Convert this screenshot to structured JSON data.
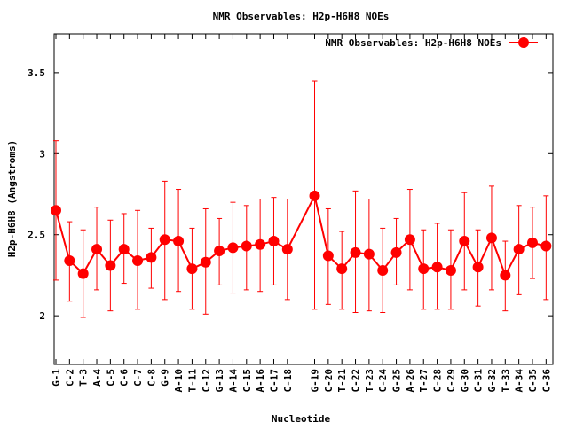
{
  "chart_data": {
    "type": "line",
    "title": "NMR Observables: H2p-H6H8 NOEs",
    "xlabel": "Nucleotide",
    "ylabel": "H2p-H6H8 (Angstroms)",
    "ylim": [
      1.7,
      3.74
    ],
    "xlim": [
      0.87,
      37.5
    ],
    "yticks": [
      2,
      2.5,
      3,
      3.5
    ],
    "ytick_labels": [
      "2",
      "2.5",
      "3",
      "3.5"
    ],
    "grid": false,
    "legend": {
      "label": "NMR Observables: H2p-H6H8 NOEs",
      "placement": "top-right"
    },
    "color": "#ff0000",
    "series": [
      {
        "name": "NMR Observables: H2p-H6H8 NOEs",
        "categories": [
          "G-1",
          "C-2",
          "T-3",
          "A-4",
          "C-5",
          "C-6",
          "C-7",
          "C-8",
          "G-9",
          "A-10",
          "T-11",
          "C-12",
          "G-13",
          "A-14",
          "C-15",
          "A-16",
          "C-17",
          "C-18",
          "G-19",
          "C-20",
          "T-21",
          "C-22",
          "T-23",
          "C-24",
          "G-25",
          "A-26",
          "T-27",
          "C-28",
          "C-29",
          "G-30",
          "C-31",
          "G-32",
          "T-33",
          "A-34",
          "C-35",
          "C-36"
        ],
        "x": [
          1,
          2,
          3,
          4,
          5,
          6,
          7,
          8,
          9,
          10,
          11,
          12,
          13,
          14,
          15,
          16,
          17,
          18,
          20,
          21,
          22,
          23,
          24,
          25,
          26,
          27,
          28,
          29,
          30,
          31,
          32,
          33,
          34,
          35,
          36,
          37
        ],
        "y": [
          2.65,
          2.34,
          2.26,
          2.41,
          2.31,
          2.41,
          2.34,
          2.36,
          2.47,
          2.46,
          2.29,
          2.33,
          2.4,
          2.42,
          2.43,
          2.44,
          2.46,
          2.41,
          2.74,
          2.37,
          2.29,
          2.39,
          2.38,
          2.28,
          2.39,
          2.47,
          2.29,
          2.3,
          2.28,
          2.46,
          2.3,
          2.48,
          2.25,
          2.41,
          2.45,
          2.43
        ],
        "ymin": [
          2.22,
          2.09,
          1.99,
          2.16,
          2.03,
          2.2,
          2.04,
          2.17,
          2.1,
          2.15,
          2.04,
          2.01,
          2.19,
          2.14,
          2.16,
          2.15,
          2.19,
          2.1,
          2.04,
          2.07,
          2.04,
          2.02,
          2.03,
          2.02,
          2.19,
          2.16,
          2.04,
          2.04,
          2.04,
          2.16,
          2.06,
          2.16,
          2.03,
          2.13,
          2.23,
          2.1
        ],
        "ymax": [
          3.08,
          2.58,
          2.53,
          2.67,
          2.59,
          2.63,
          2.65,
          2.54,
          2.83,
          2.78,
          2.54,
          2.66,
          2.6,
          2.7,
          2.68,
          2.72,
          2.73,
          2.72,
          3.45,
          2.66,
          2.52,
          2.77,
          2.72,
          2.54,
          2.6,
          2.78,
          2.53,
          2.57,
          2.53,
          2.76,
          2.53,
          2.8,
          2.46,
          2.68,
          2.67,
          2.74
        ]
      }
    ]
  }
}
